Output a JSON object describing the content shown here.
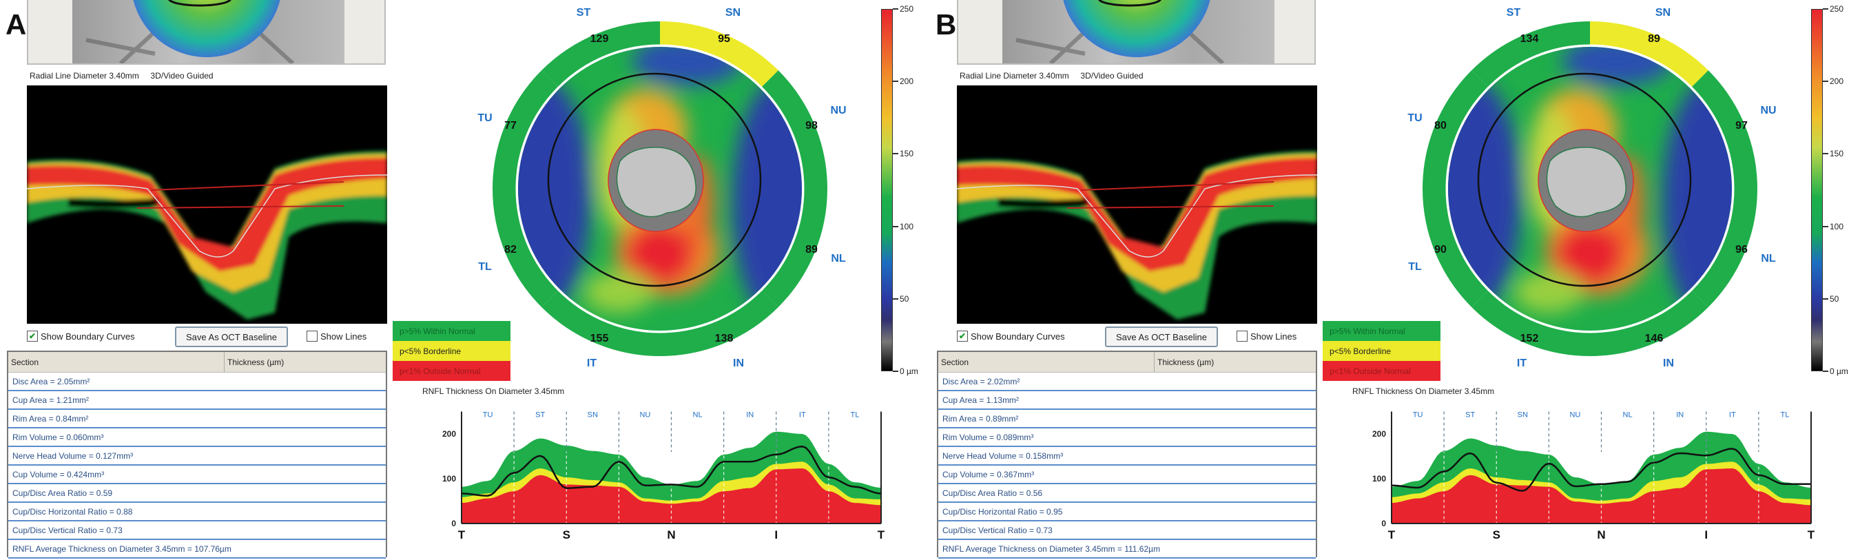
{
  "panels": [
    {
      "label": "A",
      "caption": "Radial Line Diameter 3.40mm     3D/Video Guided",
      "controls": {
        "show_boundary_curves": "Show Boundary Curves",
        "boundary_checked": true,
        "save_baseline": "Save As OCT Baseline",
        "show_lines": "Show Lines",
        "lines_checked": false
      },
      "table": {
        "headers": [
          "Section",
          "Thickness (µm)"
        ],
        "rows": [
          "Disc Area = 2.05mm²",
          "Cup Area = 1.21mm²",
          "Rim Area = 0.84mm²",
          "Rim Volume = 0.060mm³",
          "Nerve Head Volume = 0.127mm³",
          "Cup Volume = 0.424mm³",
          "Cup/Disc Area Ratio = 0.59",
          "Cup/Disc Horizontal Ratio = 0.88",
          "Cup/Disc Vertical Ratio = 0.73",
          "RNFL Average Thickness on Diameter 3.45mm = 107.76µm"
        ]
      },
      "sectors": [
        {
          "label": "ST",
          "value": "129",
          "status": "normal"
        },
        {
          "label": "SN",
          "value": "95",
          "status": "borderline"
        },
        {
          "label": "NU",
          "value": "98",
          "status": "normal"
        },
        {
          "label": "NL",
          "value": "89",
          "status": "normal"
        },
        {
          "label": "IN",
          "value": "138",
          "status": "normal"
        },
        {
          "label": "IT",
          "value": "155",
          "status": "normal"
        },
        {
          "label": "TL",
          "value": "82",
          "status": "normal"
        },
        {
          "label": "TU",
          "value": "77",
          "status": "normal"
        }
      ],
      "measured": [
        67,
        62,
        113,
        151,
        79,
        82,
        138,
        85,
        87,
        82,
        138,
        138,
        154,
        172,
        103,
        82,
        67
      ]
    },
    {
      "label": "B",
      "caption": "Radial Line Diameter 3.40mm     3D/Video Guided",
      "controls": {
        "show_boundary_curves": "Show Boundary Curves",
        "boundary_checked": true,
        "save_baseline": "Save As OCT Baseline",
        "show_lines": "Show Lines",
        "lines_checked": false
      },
      "table": {
        "headers": [
          "Section",
          "Thickness (µm)"
        ],
        "rows": [
          "Disc Area = 2.02mm²",
          "Cup Area = 1.13mm²",
          "Rim Area = 0.89mm²",
          "Rim Volume = 0.089mm³",
          "Nerve Head Volume = 0.158mm³",
          "Cup Volume = 0.367mm³",
          "Cup/Disc Area Ratio = 0.56",
          "Cup/Disc Horizontal Ratio = 0.95",
          "Cup/Disc Vertical Ratio = 0.73",
          "RNFL Average Thickness on Diameter 3.45mm = 111.62µm"
        ]
      },
      "sectors": [
        {
          "label": "ST",
          "value": "134",
          "status": "normal"
        },
        {
          "label": "SN",
          "value": "89",
          "status": "borderline"
        },
        {
          "label": "NU",
          "value": "97",
          "status": "normal"
        },
        {
          "label": "NL",
          "value": "96",
          "status": "normal"
        },
        {
          "label": "IN",
          "value": "146",
          "status": "normal"
        },
        {
          "label": "IT",
          "value": "152",
          "status": "normal"
        },
        {
          "label": "TL",
          "value": "90",
          "status": "normal"
        },
        {
          "label": "TU",
          "value": "80",
          "status": "normal"
        }
      ],
      "measured": [
        85,
        80,
        116,
        157,
        91,
        73,
        134,
        83,
        88,
        93,
        136,
        157,
        152,
        167,
        108,
        88,
        88
      ]
    }
  ],
  "legend": [
    {
      "label": "p>5% Within Normal",
      "color": "#1fae4a"
    },
    {
      "label": "p<5% Borderline",
      "color": "#ecea2a"
    },
    {
      "label": "p<1% Outside Normal",
      "color": "#e8242e"
    }
  ],
  "colorbar": {
    "ticks": [
      "250",
      "200",
      "150",
      "100",
      "50",
      "0 µm"
    ],
    "values": [
      250,
      200,
      150,
      100,
      50,
      0
    ]
  },
  "chart_data": {
    "type": "area",
    "title": "RNFL Thickness On Diameter 3.45mm",
    "ylim": [
      0,
      250
    ],
    "yticks": [
      "200",
      "100",
      "0"
    ],
    "ytick_values": [
      200,
      100,
      0
    ],
    "sections": [
      "TU",
      "ST",
      "SN",
      "NU",
      "NL",
      "IN",
      "IT",
      "TL"
    ],
    "xlabels": [
      "T",
      "S",
      "N",
      "I",
      "T"
    ],
    "x": [
      0,
      0.0625,
      0.125,
      0.1875,
      0.25,
      0.3125,
      0.375,
      0.4375,
      0.5,
      0.5625,
      0.625,
      0.6875,
      0.75,
      0.8125,
      0.875,
      0.9375,
      1
    ],
    "series": [
      {
        "name": "p95 (within normal upper)",
        "color": "#1fae4a",
        "values": [
          82,
          95,
          162,
          190,
          174,
          162,
          154,
          103,
          87,
          95,
          154,
          169,
          205,
          200,
          133,
          92,
          80
        ]
      },
      {
        "name": "p5 (borderline upper)",
        "color": "#ecea2a",
        "values": [
          59,
          67,
          92,
          123,
          103,
          97,
          92,
          56,
          51,
          56,
          95,
          103,
          133,
          138,
          87,
          56,
          54
        ]
      },
      {
        "name": "p1 (outside normal upper)",
        "color": "#e8242e",
        "values": [
          46,
          56,
          72,
          108,
          87,
          85,
          82,
          49,
          44,
          49,
          72,
          79,
          121,
          123,
          72,
          46,
          41
        ]
      }
    ],
    "measured_series": "panels[i].measured"
  }
}
